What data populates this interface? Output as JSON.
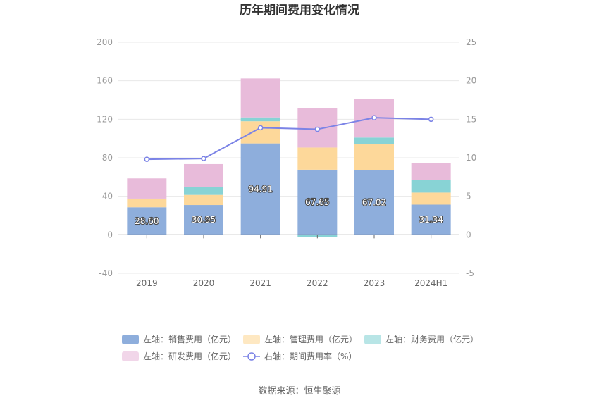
{
  "source_label": "数据来源：恒生聚源",
  "colors": {
    "sales": "#8eaedc",
    "admin": "#fdd89a",
    "finance": "#88d3d5",
    "rd": "#e8bbda",
    "rate": "#7b83e6"
  },
  "chart_data": {
    "type": "bar",
    "title": "历年期间费用变化情况",
    "categories": [
      "2019",
      "2020",
      "2021",
      "2022",
      "2023",
      "2024H1"
    ],
    "left_axis": {
      "ylim": [
        -40,
        200
      ],
      "ticks": [
        -40,
        0,
        40,
        80,
        120,
        160,
        200
      ]
    },
    "right_axis": {
      "ylim": [
        -5,
        25
      ],
      "ticks": [
        -5,
        0,
        5,
        10,
        15,
        20,
        25
      ]
    },
    "series": [
      {
        "name": "左轴：销售费用（亿元）",
        "type": "bar",
        "axis": "left",
        "color_key": "sales",
        "values": [
          28.6,
          30.95,
          94.91,
          67.65,
          67.02,
          31.34
        ],
        "labels": [
          "28.60",
          "30.95",
          "94.91",
          "67.65",
          "67.02",
          "31.34"
        ]
      },
      {
        "name": "左轴：管理费用（亿元）",
        "type": "bar",
        "axis": "left",
        "color_key": "admin",
        "values": [
          9.0,
          10.5,
          23.0,
          23.0,
          27.5,
          12.5
        ]
      },
      {
        "name": "左轴：财务费用（亿元）",
        "type": "bar",
        "axis": "left",
        "color_key": "finance",
        "values": [
          0.0,
          8.0,
          4.0,
          -2.5,
          6.5,
          13.0
        ]
      },
      {
        "name": "左轴：研发费用（亿元）",
        "type": "bar",
        "axis": "left",
        "color_key": "rd",
        "values": [
          21.0,
          24.0,
          40.5,
          41.0,
          40.0,
          18.0
        ]
      },
      {
        "name": "右轴：期间费用率（%）",
        "type": "line",
        "axis": "right",
        "color_key": "rate",
        "values": [
          9.8,
          9.9,
          13.9,
          13.7,
          15.2,
          15.0
        ]
      }
    ],
    "grid": true,
    "legend_position": "bottom"
  }
}
